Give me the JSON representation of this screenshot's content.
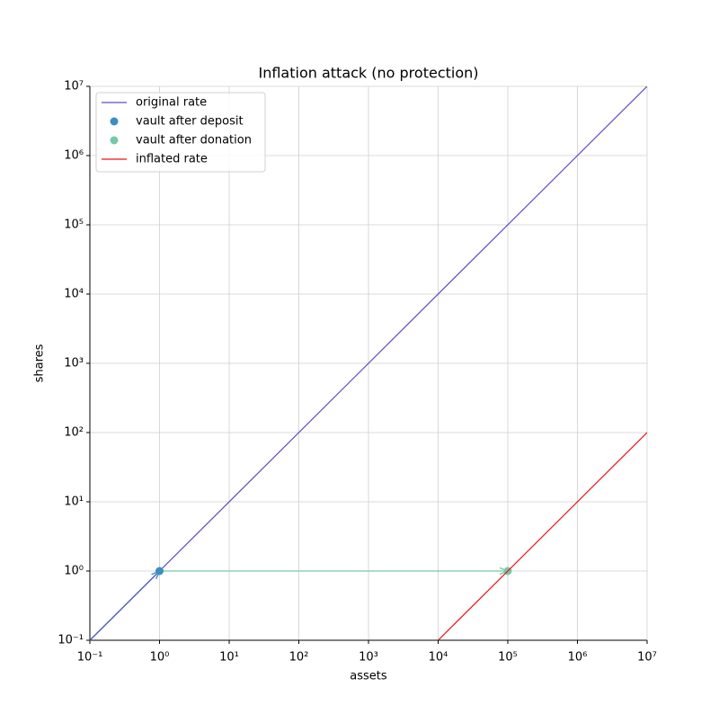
{
  "chart_data": {
    "type": "line",
    "title": "Inflation attack (no protection)",
    "xlabel": "assets",
    "ylabel": "shares",
    "xscale": "log",
    "yscale": "log",
    "grid": true,
    "legend": "upper left",
    "xlim": [
      0.1,
      10000000
    ],
    "ylim": [
      0.1,
      10000000
    ],
    "xticks": [
      {
        "value": 0.1,
        "label": "10⁻¹"
      },
      {
        "value": 1,
        "label": "10⁰"
      },
      {
        "value": 10,
        "label": "10¹"
      },
      {
        "value": 100,
        "label": "10²"
      },
      {
        "value": 1000,
        "label": "10³"
      },
      {
        "value": 10000,
        "label": "10⁴"
      },
      {
        "value": 100000,
        "label": "10⁵"
      },
      {
        "value": 1000000,
        "label": "10⁶"
      },
      {
        "value": 10000000,
        "label": "10⁷"
      }
    ],
    "yticks": [
      {
        "value": 0.1,
        "label": "10⁻¹"
      },
      {
        "value": 1,
        "label": "10⁰"
      },
      {
        "value": 10,
        "label": "10¹"
      },
      {
        "value": 100,
        "label": "10²"
      },
      {
        "value": 1000,
        "label": "10³"
      },
      {
        "value": 10000,
        "label": "10⁴"
      },
      {
        "value": 100000,
        "label": "10⁵"
      },
      {
        "value": 1000000,
        "label": "10⁶"
      },
      {
        "value": 10000000,
        "label": "10⁷"
      }
    ],
    "series": [
      {
        "name": "original rate",
        "type": "line",
        "color": "#5a4fc4",
        "x": [
          0.1,
          10000000
        ],
        "y": [
          0.1,
          10000000
        ]
      },
      {
        "name": "vault after deposit",
        "type": "scatter",
        "color": "#3a8fc0",
        "x": [
          1
        ],
        "y": [
          1
        ]
      },
      {
        "name": "vault after donation",
        "type": "scatter",
        "color": "#76c9a8",
        "x": [
          100000
        ],
        "y": [
          1
        ]
      },
      {
        "name": "inflated rate",
        "type": "line",
        "color": "#ee1111",
        "x": [
          10000,
          10000000
        ],
        "y": [
          0.1,
          100
        ]
      }
    ],
    "arrows": [
      {
        "color": "#3a8fc0",
        "x": [
          0.1,
          1
        ],
        "y": [
          0.1,
          1
        ]
      },
      {
        "color": "#76c9a8",
        "x": [
          1,
          100000
        ],
        "y": [
          1,
          1
        ]
      }
    ]
  }
}
